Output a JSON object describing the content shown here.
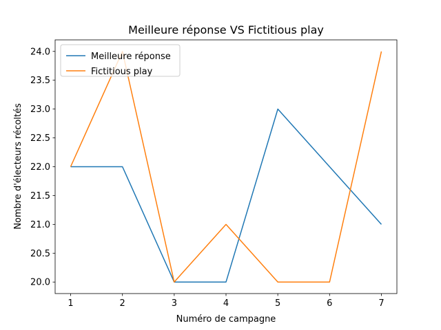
{
  "chart_data": {
    "type": "line",
    "title": "Meilleure réponse VS Fictitious play",
    "xlabel": "Numéro de campagne",
    "ylabel": "Nombre d'électeurs récoltés",
    "x": [
      1,
      2,
      3,
      4,
      5,
      6,
      7
    ],
    "series": [
      {
        "name": "Meilleure réponse",
        "values": [
          22,
          22,
          20,
          20,
          23,
          22,
          21
        ],
        "color": "#1f77b4"
      },
      {
        "name": "Fictitious play",
        "values": [
          22,
          24,
          20,
          21,
          20,
          20,
          24
        ],
        "color": "#ff7f0e"
      }
    ],
    "xticks": [
      "1",
      "2",
      "3",
      "4",
      "5",
      "6",
      "7"
    ],
    "yticks": [
      "20.0",
      "20.5",
      "21.0",
      "21.5",
      "22.0",
      "22.5",
      "23.0",
      "23.5",
      "24.0"
    ],
    "xlim": [
      0.7,
      7.3
    ],
    "ylim": [
      19.8,
      24.2
    ],
    "grid": false,
    "legend_position": "top-left"
  }
}
